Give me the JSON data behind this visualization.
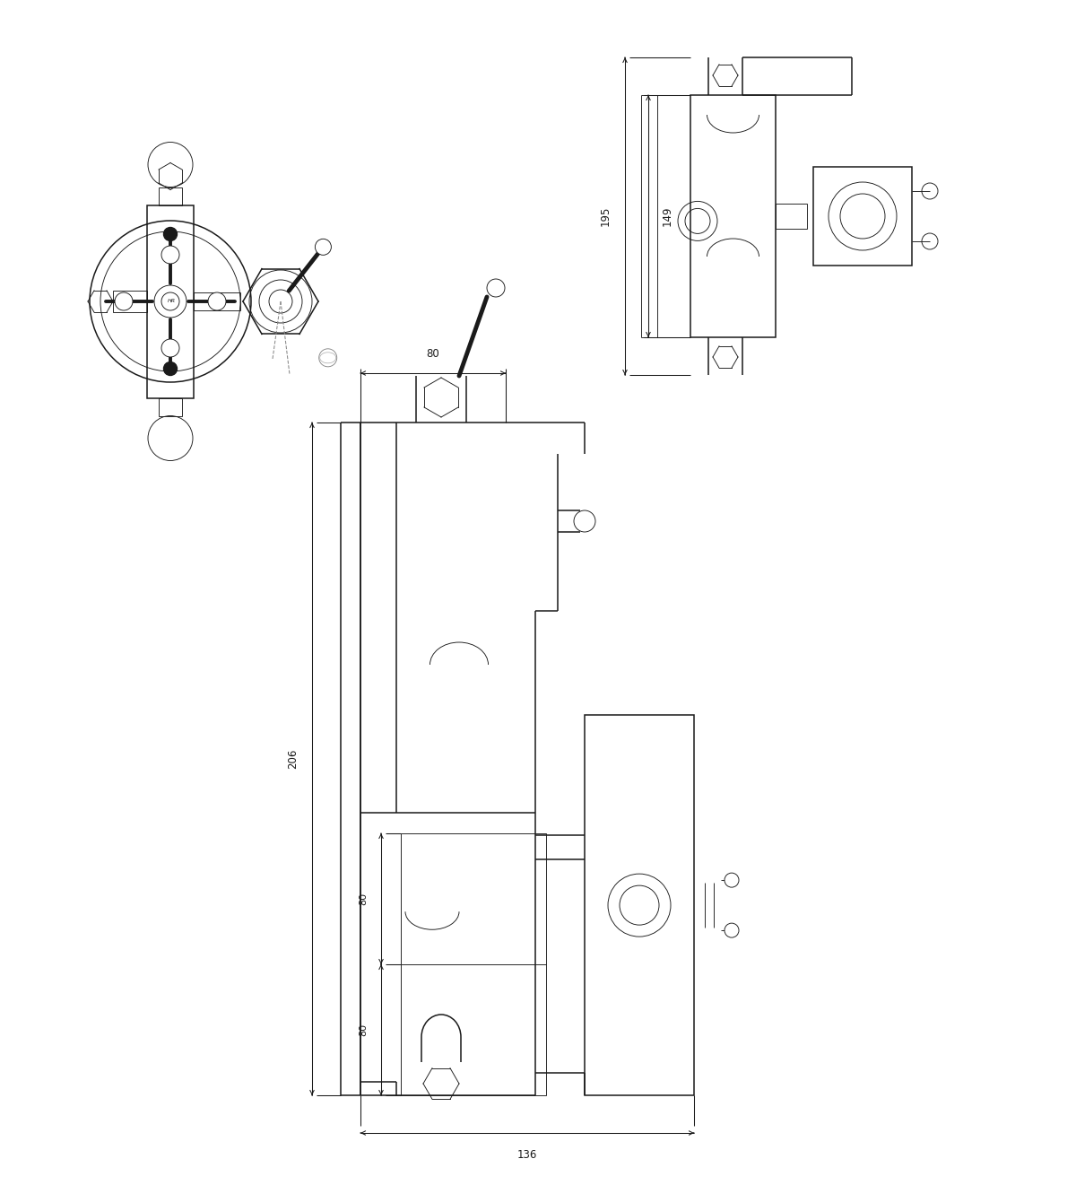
{
  "bg_color": "#ffffff",
  "line_color": "#1a1a1a",
  "dim_color": "#1a1a1a",
  "fig_width": 12.0,
  "fig_height": 13.21,
  "dim_149": "149",
  "dim_195": "195",
  "dim_80_top": "80",
  "dim_206": "206",
  "dim_80_mid": "80",
  "dim_80_bot": "80",
  "dim_136": "136"
}
